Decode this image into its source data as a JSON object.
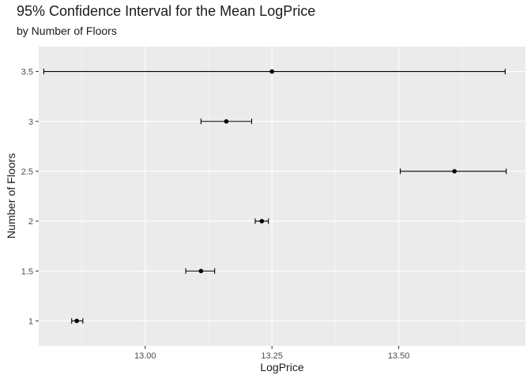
{
  "chart_data": {
    "type": "errorbar",
    "title": "95% Confidence Interval for the Mean LogPrice",
    "subtitle": "by Number of Floors",
    "xlabel": "LogPrice",
    "ylabel": "Number of Floors",
    "xlim": [
      12.79,
      13.75
    ],
    "ylim": [
      0.75,
      3.75
    ],
    "x_ticks": [
      13.0,
      13.25,
      13.5
    ],
    "x_tick_labels": [
      "13.00",
      "13.25",
      "13.50"
    ],
    "y_ticks": [
      1,
      1.5,
      2,
      2.5,
      3,
      3.5
    ],
    "y_tick_labels": [
      "1",
      "1.5",
      "2",
      "2.5",
      "3",
      "3.5"
    ],
    "grid": true,
    "points": [
      {
        "floors": 1,
        "mean": 12.865,
        "lower": 12.855,
        "upper": 12.877
      },
      {
        "floors": 1.5,
        "mean": 13.11,
        "lower": 13.08,
        "upper": 13.137
      },
      {
        "floors": 2,
        "mean": 13.23,
        "lower": 13.217,
        "upper": 13.243
      },
      {
        "floors": 2.5,
        "mean": 13.61,
        "lower": 13.503,
        "upper": 13.712
      },
      {
        "floors": 3,
        "mean": 13.16,
        "lower": 13.11,
        "upper": 13.21
      },
      {
        "floors": 3.5,
        "mean": 13.25,
        "lower": 12.8,
        "upper": 13.71
      }
    ]
  }
}
